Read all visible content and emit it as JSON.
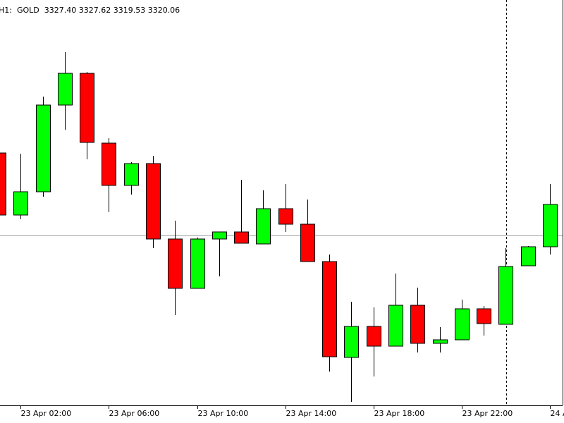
{
  "chart_data": {
    "type": "candlestick",
    "title": "H1:  GOLD  3327.40 3327.62 3319.53 3320.06",
    "categories": [
      null,
      "23 Apr 02:00",
      null,
      null,
      null,
      "23 Apr 06:00",
      null,
      null,
      null,
      "23 Apr 10:00",
      null,
      null,
      null,
      "23 Apr 14:00",
      null,
      null,
      null,
      "23 Apr 18:00",
      null,
      null,
      null,
      "23 Apr 22:00",
      null,
      null,
      null,
      "24 A"
    ],
    "open": [
      3378.3,
      3369.5,
      3372.8,
      3385.1,
      3389.6,
      3379.7,
      3373.7,
      3376.8,
      3366.1,
      3359.1,
      3366.1,
      3367.1,
      3365.4,
      3370.4,
      3368.2,
      3362.9,
      3349.3,
      3353.7,
      3350.9,
      3356.7,
      3351.3,
      3351.8,
      3356.2,
      3354.0,
      3362.3,
      3365.0
    ],
    "high": [
      3378.3,
      3378.2,
      3386.3,
      3392.6,
      3389.8,
      3380.4,
      3377.0,
      3377.9,
      3368.7,
      3366.3,
      3367.1,
      3374.5,
      3373.0,
      3373.9,
      3371.7,
      3363.9,
      3357.2,
      3356.4,
      3361.2,
      3359.2,
      3353.6,
      3357.5,
      3356.6,
      3364.8,
      3365.1,
      3373.9
    ],
    "low": [
      3369.5,
      3368.9,
      3372.1,
      3381.6,
      3377.4,
      3369.9,
      3372.4,
      3364.8,
      3355.3,
      3359.1,
      3360.8,
      3365.5,
      3365.4,
      3367.1,
      3362.9,
      3347.3,
      3343.0,
      3346.6,
      3350.9,
      3350.0,
      3350.0,
      3351.8,
      3352.4,
      3354.0,
      3362.3,
      3363.9
    ],
    "close": [
      3369.5,
      3372.8,
      3385.1,
      3389.6,
      3379.8,
      3373.7,
      3376.8,
      3366.1,
      3359.1,
      3366.1,
      3367.1,
      3365.5,
      3370.4,
      3368.2,
      3362.9,
      3349.4,
      3353.7,
      3350.9,
      3356.7,
      3351.3,
      3351.8,
      3356.2,
      3354.1,
      3362.2,
      3365.0,
      3371.0
    ],
    "up_color": "#00ff00",
    "down_color": "#ff0000",
    "ylim": [
      3342.5,
      3400
    ],
    "price_line": 3366.6
  }
}
